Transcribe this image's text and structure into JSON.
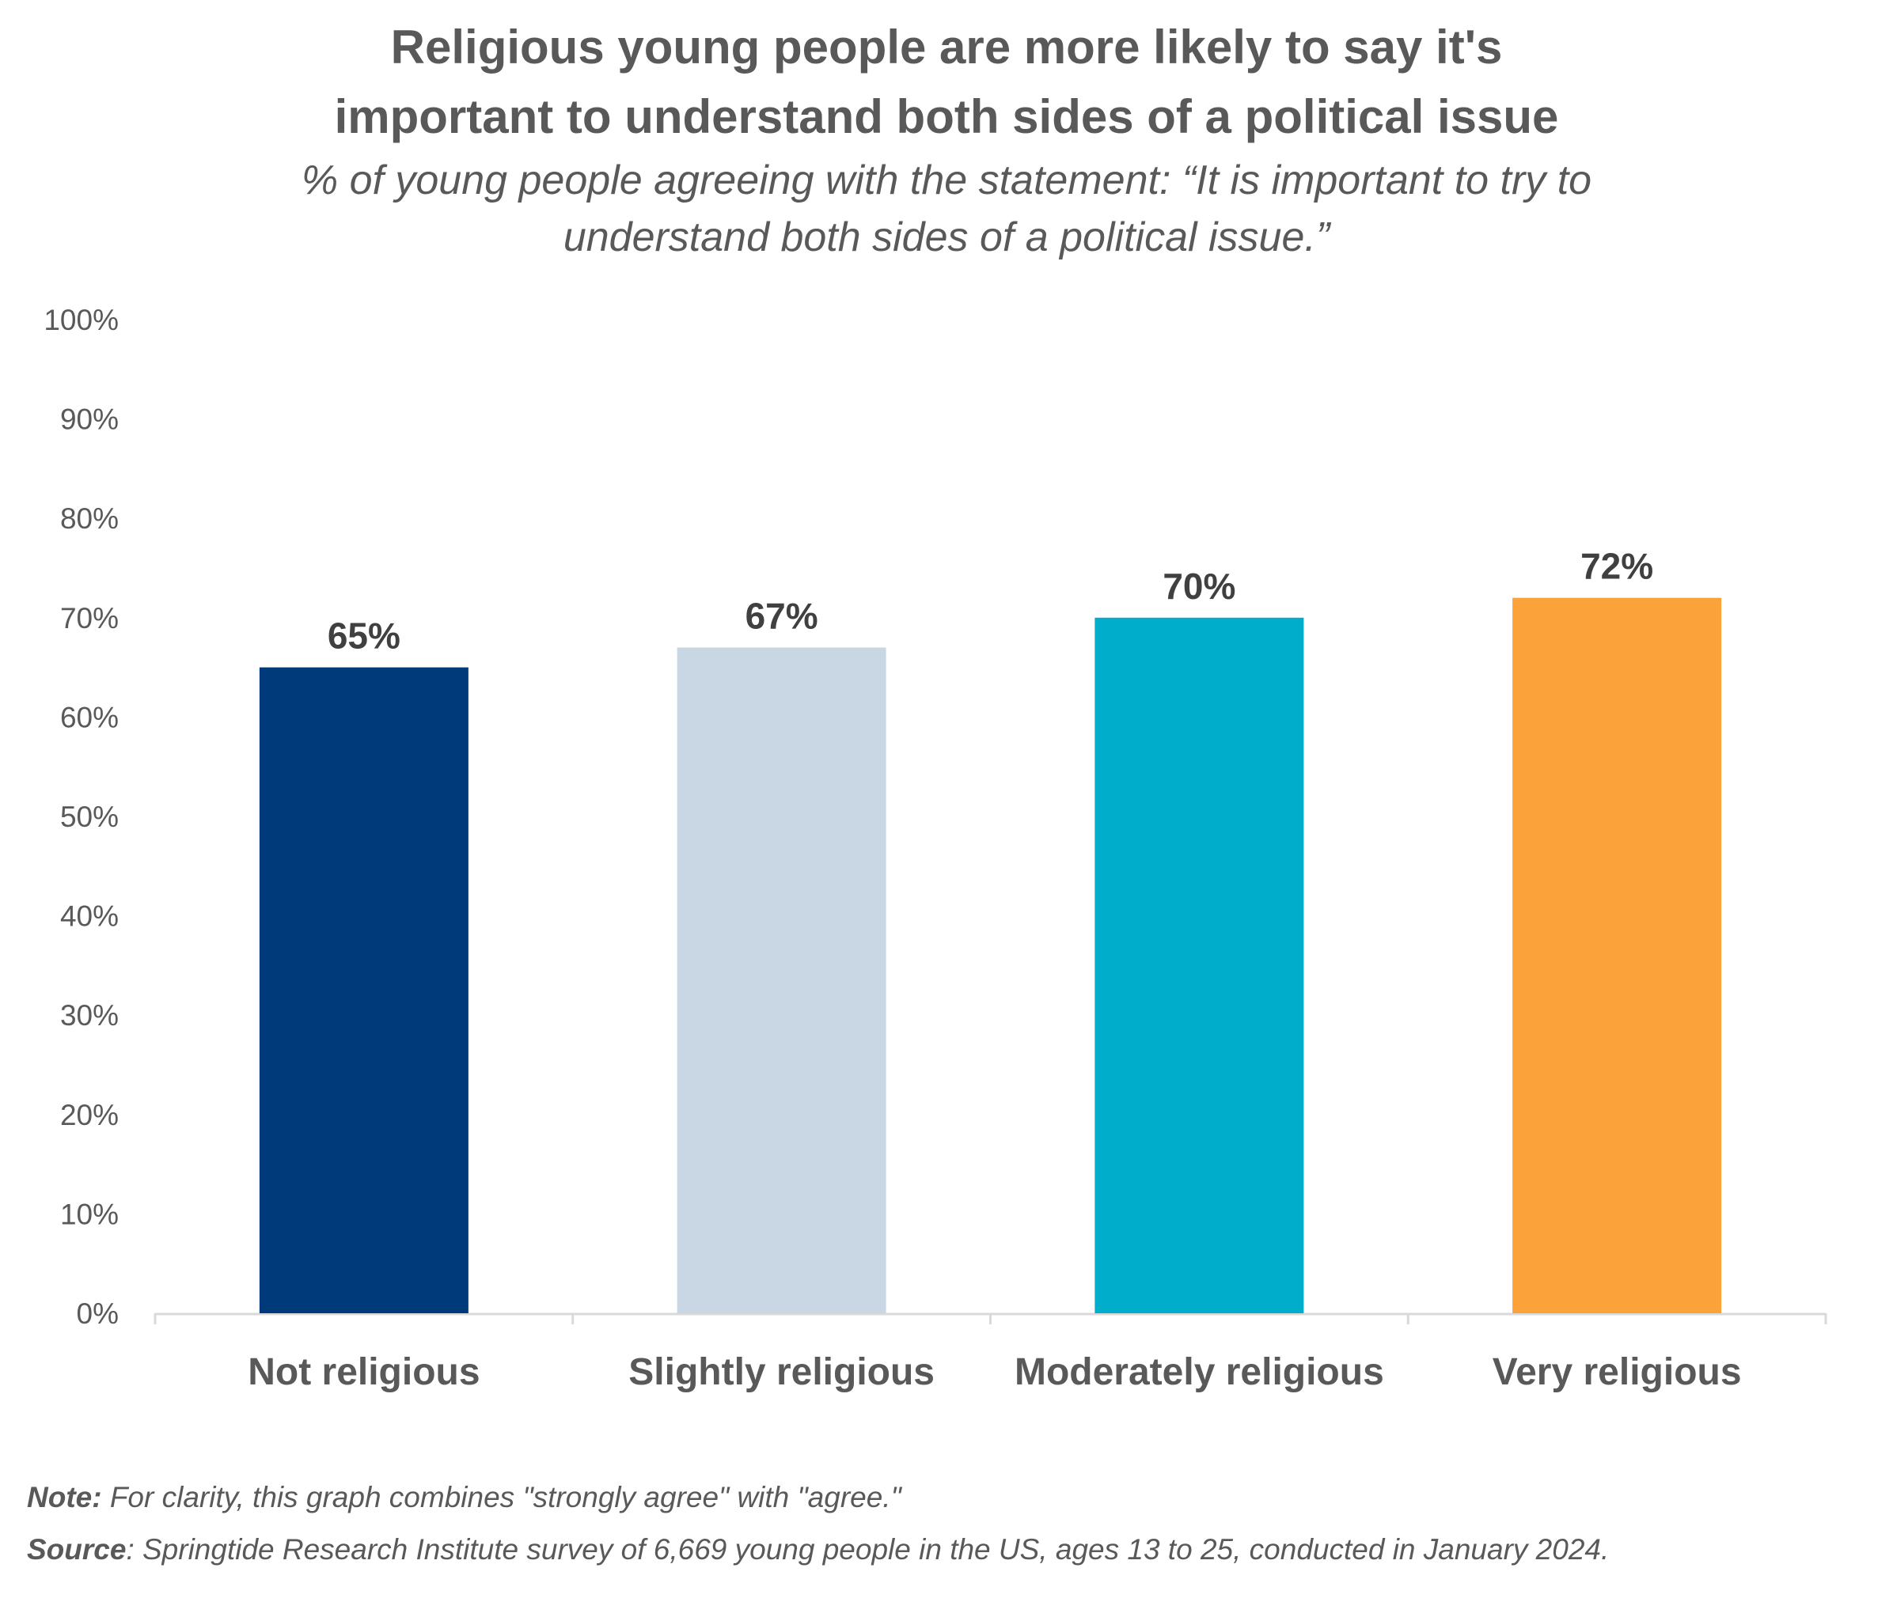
{
  "chart_data": {
    "type": "bar",
    "title": "Religious young people are more likely to say it's important to understand both sides of a political issue",
    "title_lines": [
      "Religious young people are more likely to say it's",
      "important to understand both sides of a political issue"
    ],
    "subtitle_lines": [
      "% of young people agreeing with the statement: “It is important to try to",
      "understand both sides of a political issue.”"
    ],
    "categories": [
      "Not religious",
      "Slightly religious",
      "Moderately religious",
      "Very religious"
    ],
    "values": [
      65,
      67,
      70,
      72
    ],
    "data_labels": [
      "65%",
      "67%",
      "70%",
      "72%"
    ],
    "colors": [
      "#003a7a",
      "#c9d6e3",
      "#00aecb",
      "#fba23a"
    ],
    "ylim": [
      0,
      100
    ],
    "yticks": [
      "0%",
      "10%",
      "20%",
      "30%",
      "40%",
      "50%",
      "60%",
      "70%",
      "80%",
      "90%",
      "100%"
    ],
    "grid": false,
    "legend": "none",
    "xlabel": "",
    "ylabel": ""
  },
  "footer": {
    "note_label": "Note:",
    "note_text": " For clarity, this graph combines \"strongly agree\" with \"agree.\"",
    "source_label": "Source",
    "source_text": ": Springtide Research Institute survey of 6,669 young people in the US, ages 13 to 25, conducted in January 2024."
  }
}
